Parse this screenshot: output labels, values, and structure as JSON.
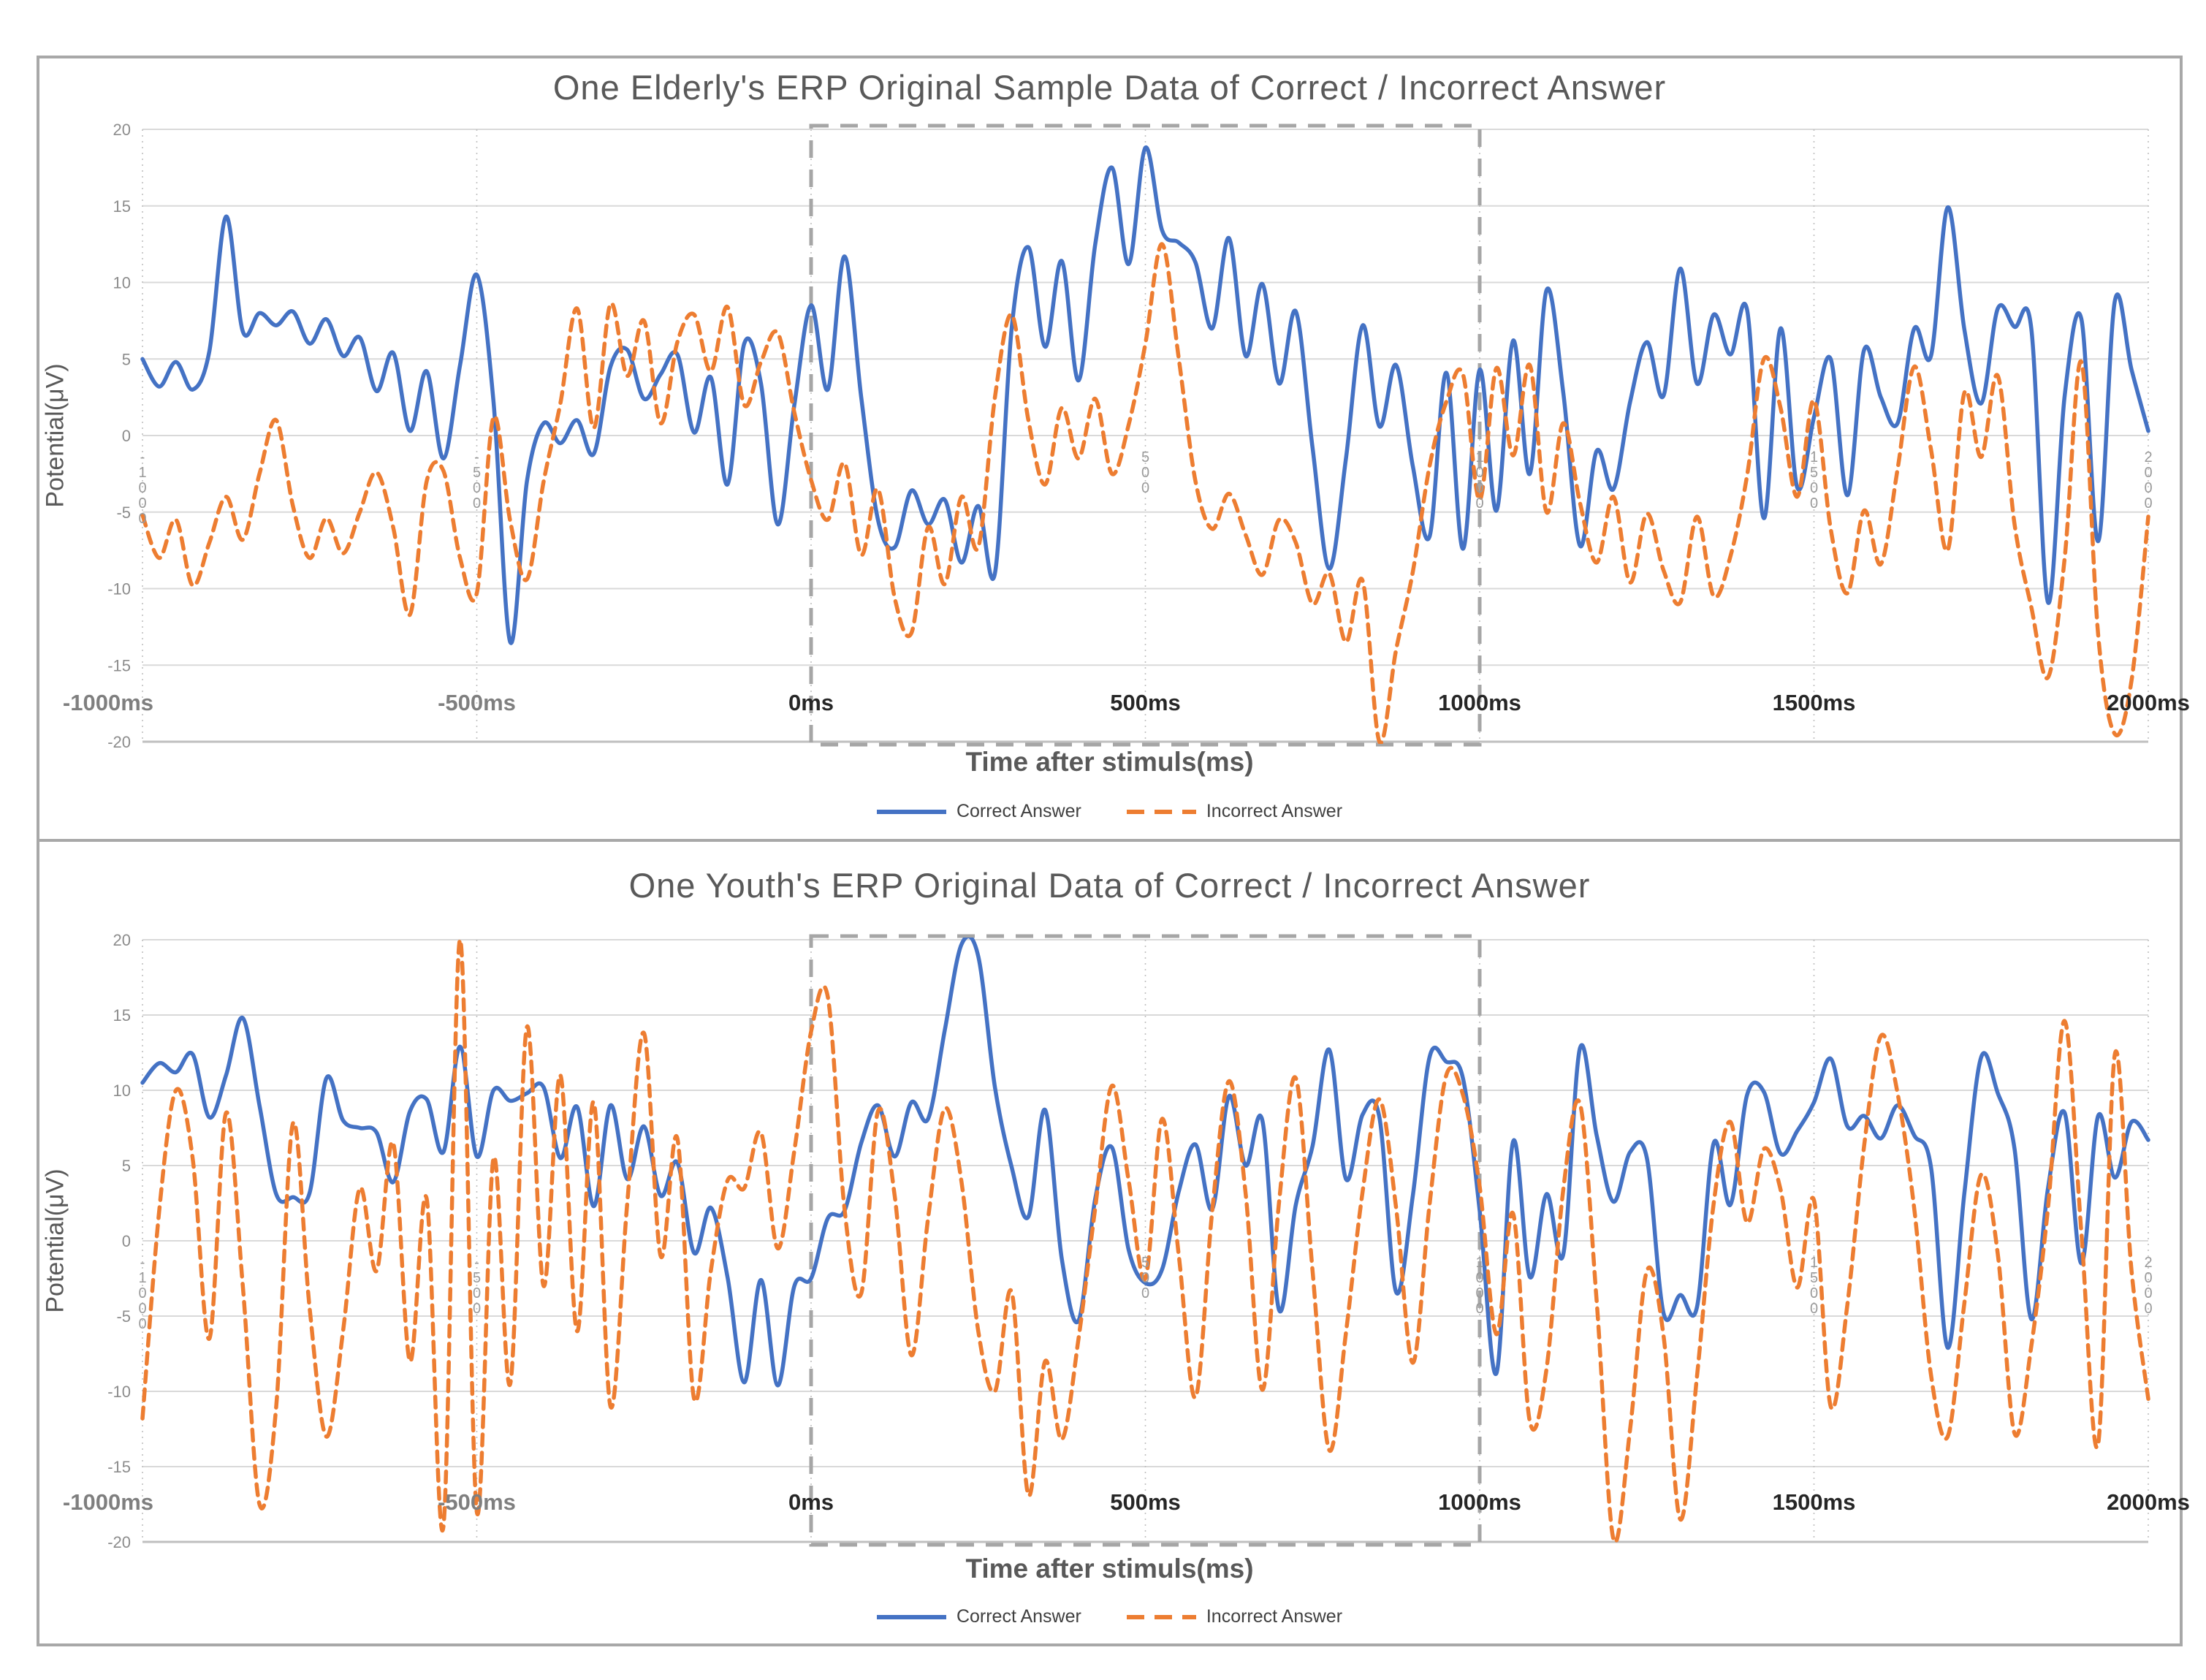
{
  "figure": {
    "colors": {
      "correct": "#4472C4",
      "incorrect": "#ED7D31",
      "gridline": "#D9D9D9",
      "axis_line": "#BFBFBF",
      "highlight_box": "#A6A6A6",
      "frame_border": "#A8A8A8",
      "title_text": "#595959",
      "tick_muted": "#7F7F7F",
      "tick_strong": "#262626",
      "y_tick": "#8C8C8C",
      "inner_label": "#9A9A9A"
    }
  },
  "chart_data": [
    {
      "type": "line",
      "name": "elderly",
      "title": "One Elderly's ERP Original Sample Data of Correct / Incorrect Answer",
      "ylabel": "Potential(μV)",
      "xlabel": "Time after stimuls(ms)",
      "ylim": [
        -20,
        20
      ],
      "y_tick_step": 5,
      "grid": true,
      "legend_position": "bottom",
      "x_ms": {
        "start": -1000,
        "end": 2000,
        "step": 25,
        "count": 121
      },
      "x_ticks": [
        {
          "ms": -1000,
          "label": "-1000ms",
          "muted": true
        },
        {
          "ms": -500,
          "label": "-500ms",
          "muted": true
        },
        {
          "ms": 0,
          "label": "0ms",
          "muted": false
        },
        {
          "ms": 500,
          "label": "500ms",
          "muted": false
        },
        {
          "ms": 1000,
          "label": "1000ms",
          "muted": false
        },
        {
          "ms": 1500,
          "label": "1500ms",
          "muted": false
        },
        {
          "ms": 2000,
          "label": "2000ms",
          "muted": false
        }
      ],
      "inner_axis_labels": [
        {
          "ms": -1000,
          "text": "-1000"
        },
        {
          "ms": -500,
          "text": "-500"
        },
        {
          "ms": 500,
          "text": "500"
        },
        {
          "ms": 1000,
          "text": "1000"
        },
        {
          "ms": 1500,
          "text": "1500"
        },
        {
          "ms": 2000,
          "text": "2000"
        }
      ],
      "highlight_box": {
        "from_ms": 0,
        "to_ms": 1000,
        "style": "dashed-box"
      },
      "series": [
        {
          "name": "Correct Answer",
          "color": "#4472C4",
          "style": "solid",
          "values": [
            5.0,
            3.2,
            4.8,
            3.0,
            5.5,
            14.3,
            6.8,
            8.0,
            7.2,
            8.1,
            6.0,
            7.6,
            5.2,
            6.4,
            2.9,
            5.4,
            0.3,
            4.2,
            -1.5,
            4.6,
            10.5,
            2.2,
            -13.5,
            -3.0,
            0.8,
            -0.5,
            1.0,
            -1.2,
            4.5,
            5.6,
            2.4,
            4.0,
            5.3,
            0.2,
            3.8,
            -3.2,
            6.0,
            3.4,
            -5.8,
            2.0,
            8.5,
            3.0,
            11.7,
            2.5,
            -5.5,
            -7.3,
            -3.6,
            -5.8,
            -4.2,
            -8.3,
            -4.6,
            -9.0,
            7.0,
            12.3,
            5.8,
            11.4,
            3.6,
            12.5,
            17.5,
            11.2,
            18.8,
            13.4,
            12.6,
            11.3,
            7.0,
            12.9,
            5.2,
            9.9,
            3.4,
            8.1,
            -0.8,
            -8.7,
            -1.5,
            7.2,
            0.6,
            4.6,
            -2.0,
            -6.6,
            4.1,
            -7.4,
            4.3,
            -4.9,
            6.2,
            -2.5,
            9.5,
            2.8,
            -7.2,
            -1.0,
            -3.5,
            2.2,
            6.1,
            2.6,
            10.9,
            3.4,
            7.9,
            5.3,
            8.2,
            -5.4,
            7.0,
            -3.4,
            1.2,
            5.0,
            -3.9,
            5.6,
            2.5,
            0.8,
            7.0,
            5.2,
            14.9,
            6.9,
            2.1,
            8.3,
            7.1,
            7.0,
            -10.9,
            2.6,
            7.6,
            -6.9,
            8.8,
            4.3,
            0.3
          ]
        },
        {
          "name": "Incorrect Answer",
          "color": "#ED7D31",
          "style": "dashed",
          "values": [
            -5.2,
            -8.0,
            -5.5,
            -9.8,
            -7.0,
            -4.0,
            -6.8,
            -2.5,
            1.0,
            -4.6,
            -8.0,
            -5.4,
            -7.7,
            -5.0,
            -2.4,
            -6.0,
            -11.7,
            -3.0,
            -2.3,
            -8.0,
            -10.3,
            1.2,
            -5.6,
            -9.4,
            -3.0,
            2.1,
            8.3,
            0.5,
            8.6,
            3.9,
            7.5,
            0.8,
            6.1,
            7.9,
            4.2,
            8.4,
            2.0,
            4.8,
            6.7,
            1.5,
            -2.9,
            -5.5,
            -1.8,
            -7.8,
            -3.5,
            -10.6,
            -12.9,
            -6.0,
            -9.7,
            -4.0,
            -7.3,
            2.5,
            7.9,
            1.0,
            -3.2,
            1.8,
            -1.5,
            2.4,
            -2.5,
            0.7,
            6.0,
            12.5,
            5.0,
            -3.0,
            -6.1,
            -3.8,
            -6.5,
            -9.1,
            -5.5,
            -7.0,
            -11.0,
            -9.0,
            -13.5,
            -9.5,
            -20.0,
            -14.0,
            -8.9,
            -2.0,
            2.2,
            4.0,
            -4.2,
            4.4,
            -1.3,
            4.6,
            -5.0,
            0.8,
            -4.4,
            -8.3,
            -4.0,
            -9.6,
            -5.1,
            -8.8,
            -10.9,
            -5.3,
            -10.5,
            -7.9,
            -2.6,
            5.0,
            1.8,
            -4.0,
            2.3,
            -6.1,
            -10.3,
            -4.9,
            -8.4,
            -2.2,
            4.5,
            -0.9,
            -7.5,
            2.8,
            -1.4,
            3.9,
            -5.8,
            -11.2,
            -15.8,
            -8.0,
            4.8,
            -13.0,
            -19.5,
            -16.0,
            -5.3
          ]
        }
      ]
    },
    {
      "type": "line",
      "name": "youth",
      "title": "One Youth's ERP Original Data of Correct / Incorrect Answer",
      "ylabel": "Potential(μV)",
      "xlabel": "Time after stimuls(ms)",
      "ylim": [
        -20,
        20
      ],
      "y_tick_step": 5,
      "grid": true,
      "legend_position": "bottom",
      "x_ms": {
        "start": -1000,
        "end": 2000,
        "step": 25,
        "count": 121
      },
      "x_ticks": [
        {
          "ms": -1000,
          "label": "-1000ms",
          "muted": true
        },
        {
          "ms": -500,
          "label": "-500ms",
          "muted": true
        },
        {
          "ms": 0,
          "label": "0ms",
          "muted": false
        },
        {
          "ms": 500,
          "label": "500ms",
          "muted": false
        },
        {
          "ms": 1000,
          "label": "1000ms",
          "muted": false
        },
        {
          "ms": 1500,
          "label": "1500ms",
          "muted": false
        },
        {
          "ms": 2000,
          "label": "2000ms",
          "muted": false
        }
      ],
      "inner_axis_labels": [
        {
          "ms": -1000,
          "text": "-1000"
        },
        {
          "ms": -500,
          "text": "-500"
        },
        {
          "ms": 500,
          "text": "500"
        },
        {
          "ms": 1000,
          "text": "1000"
        },
        {
          "ms": 1500,
          "text": "1500"
        },
        {
          "ms": 2000,
          "text": "2000"
        }
      ],
      "highlight_box": {
        "from_ms": 0,
        "to_ms": 1000,
        "style": "dashed-box"
      },
      "series": [
        {
          "name": "Correct Answer",
          "color": "#4472C4",
          "style": "solid",
          "values": [
            10.5,
            11.8,
            11.2,
            12.4,
            8.2,
            11.0,
            14.8,
            9.0,
            3.1,
            2.9,
            3.2,
            10.8,
            8.0,
            7.5,
            7.2,
            3.9,
            8.6,
            9.4,
            5.9,
            12.9,
            5.6,
            10.0,
            9.3,
            9.8,
            10.2,
            5.5,
            8.9,
            2.3,
            9.0,
            4.1,
            7.6,
            3.0,
            5.2,
            -0.8,
            2.2,
            -2.4,
            -9.4,
            -2.6,
            -9.6,
            -3.0,
            -2.5,
            1.5,
            2.0,
            6.5,
            9.0,
            5.6,
            9.2,
            8.1,
            14.0,
            19.7,
            18.9,
            10.2,
            4.9,
            1.6,
            8.7,
            -1.2,
            -5.3,
            2.8,
            6.2,
            -0.6,
            -2.8,
            -1.9,
            3.3,
            6.4,
            2.1,
            9.6,
            5.0,
            8.0,
            -4.6,
            2.4,
            6.3,
            12.7,
            4.1,
            8.4,
            8.2,
            -3.4,
            3.0,
            12.2,
            11.9,
            10.8,
            2.0,
            -8.8,
            6.6,
            -2.4,
            3.1,
            -0.9,
            12.8,
            7.0,
            2.6,
            5.9,
            5.5,
            -4.8,
            -3.6,
            -4.4,
            6.5,
            2.4,
            9.7,
            9.9,
            5.8,
            7.3,
            9.2,
            12.1,
            7.6,
            8.3,
            6.8,
            9.0,
            7.0,
            4.9,
            -7.1,
            3.2,
            12.2,
            9.8,
            6.1,
            -5.2,
            3.5,
            8.5,
            -1.5,
            8.3,
            4.2,
            7.9,
            6.7
          ]
        },
        {
          "name": "Incorrect Answer",
          "color": "#ED7D31",
          "style": "dashed",
          "values": [
            -11.8,
            2.0,
            10.0,
            5.5,
            -6.5,
            8.5,
            -3.0,
            -17.5,
            -11.0,
            7.8,
            -4.5,
            -13.0,
            -6.0,
            3.5,
            -2.0,
            6.5,
            -8.0,
            2.8,
            -19.0,
            20.0,
            -18.0,
            5.5,
            -9.5,
            14.2,
            -3.0,
            11.0,
            -6.0,
            9.2,
            -11.0,
            2.5,
            13.8,
            -1.0,
            6.8,
            -10.5,
            -2.0,
            4.0,
            3.5,
            7.2,
            -0.5,
            6.0,
            13.9,
            16.2,
            2.1,
            -3.5,
            8.6,
            3.0,
            -7.6,
            1.5,
            8.8,
            3.9,
            -6.0,
            -10.0,
            -3.4,
            -16.9,
            -8.0,
            -13.2,
            -6.5,
            2.2,
            10.3,
            4.0,
            -2.5,
            8.1,
            -1.0,
            -10.4,
            2.0,
            10.6,
            3.1,
            -9.9,
            2.6,
            10.8,
            -2.0,
            -13.9,
            -6.1,
            3.3,
            9.4,
            2.2,
            -8.1,
            2.4,
            11.0,
            9.7,
            3.6,
            -6.2,
            1.8,
            -12.0,
            -8.5,
            3.4,
            9.1,
            -4.0,
            -19.8,
            -12.5,
            -2.0,
            -6.3,
            -18.5,
            -9.0,
            2.5,
            7.9,
            1.2,
            6.1,
            3.4,
            -3.1,
            2.7,
            -11.0,
            -4.2,
            6.3,
            13.6,
            9.8,
            2.1,
            -8.9,
            -13.0,
            -4.1,
            4.4,
            -0.9,
            -12.8,
            -7.0,
            2.2,
            14.6,
            0.5,
            -13.5,
            12.4,
            -2.0,
            -10.5
          ]
        }
      ]
    }
  ]
}
